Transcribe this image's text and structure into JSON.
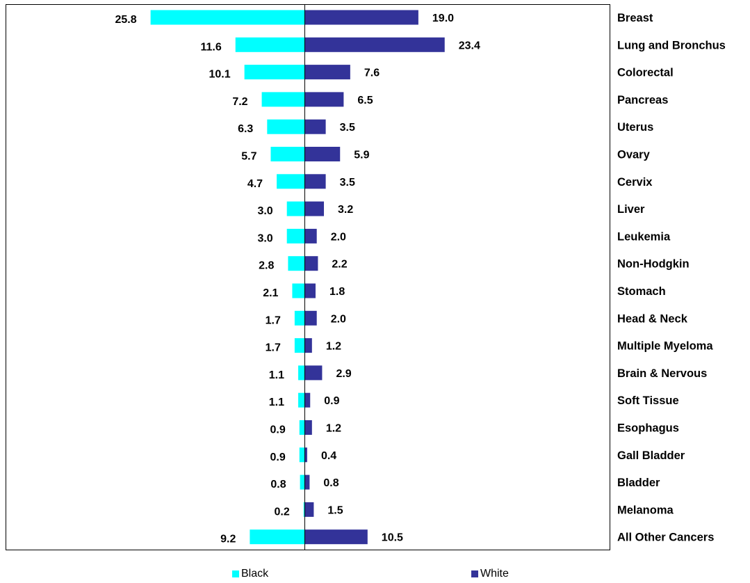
{
  "chart_data": {
    "type": "bar",
    "orientation": "horizontal-diverging",
    "categories": [
      "Breast",
      "Lung and Bronchus",
      "Colorectal",
      "Pancreas",
      "Uterus",
      "Ovary",
      "Cervix",
      "Liver",
      "Leukemia",
      "Non-Hodgkin",
      "Stomach",
      "Head & Neck",
      "Multiple Myeloma",
      "Brain & Nervous",
      "Soft Tissue",
      "Esophagus",
      "Gall Bladder",
      "Bladder",
      "Melanoma",
      "All Other Cancers"
    ],
    "series": [
      {
        "name": "Black",
        "color": "#00FFFF",
        "direction": "left",
        "values": [
          25.8,
          11.6,
          10.1,
          7.2,
          6.3,
          5.7,
          4.7,
          3.0,
          3.0,
          2.8,
          2.1,
          1.7,
          1.7,
          1.1,
          1.1,
          0.9,
          0.9,
          0.8,
          0.2,
          9.2
        ],
        "labels": [
          "25.8",
          "11.6",
          "10.1",
          "7.2",
          "6.3",
          "5.7",
          "4.7",
          "3.0",
          "3.0",
          "2.8",
          "2.1",
          "1.7",
          "1.7",
          "1.1",
          "1.1",
          "0.9",
          "0.9",
          "0.8",
          "0.2",
          "9.2"
        ]
      },
      {
        "name": "White",
        "color": "#333399",
        "direction": "right",
        "values": [
          19.0,
          23.4,
          7.6,
          6.5,
          3.5,
          5.9,
          3.5,
          3.2,
          2.0,
          2.2,
          1.8,
          2.0,
          1.2,
          2.9,
          0.9,
          1.2,
          0.4,
          0.8,
          1.5,
          10.5
        ],
        "labels": [
          "19.0",
          "23.4",
          "7.6",
          "6.5",
          "3.5",
          "5.9",
          "3.5",
          "3.2",
          "2.0",
          "2.2",
          "1.8",
          "2.0",
          "1.2",
          "2.9",
          "0.9",
          "1.2",
          "0.4",
          "0.8",
          "1.5",
          "10.5"
        ]
      }
    ],
    "xlim": [
      -26,
      49
    ],
    "grid": false,
    "legend": "bottom",
    "title": "",
    "xlabel": "",
    "ylabel": ""
  },
  "legend": {
    "black_label": "Black",
    "white_label": "White"
  }
}
